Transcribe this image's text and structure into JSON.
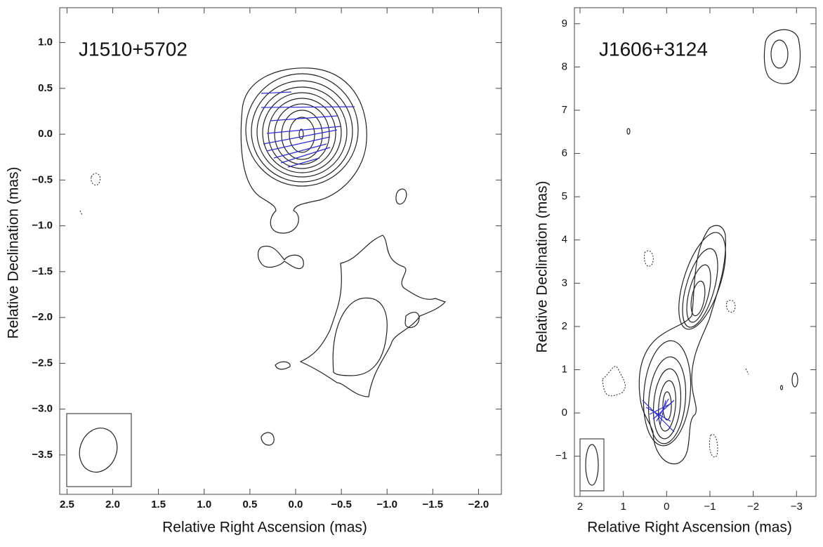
{
  "chart_data": [
    {
      "type": "contour",
      "title": "J1510+5702",
      "xlabel": "Relative Right Ascension (mas)",
      "ylabel": "Relative Declination (mas)",
      "xlim": [
        2.58,
        -2.25
      ],
      "ylim": [
        -3.93,
        1.38
      ],
      "xticks": [
        2.5,
        {
          "value": 2.0,
          "label": "2.0"
        },
        1.5,
        {
          "value": 1.0,
          "label": "1.0"
        },
        0.5,
        {
          "value": 0.0,
          "label": "0.0"
        },
        {
          "value": -0.5,
          "label": "−0.5"
        },
        {
          "value": -1.0,
          "label": "−1.0"
        },
        {
          "value": -1.5,
          "label": "−1.5"
        },
        {
          "value": -2.0,
          "label": "−2.0"
        }
      ],
      "yticks": [
        {
          "value": 1.0,
          "label": "1.0"
        },
        0.5,
        {
          "value": 0.0,
          "label": "0.0"
        },
        {
          "value": -0.5,
          "label": "−0.5"
        },
        {
          "value": -1.0,
          "label": "−1.0"
        },
        {
          "value": -1.5,
          "label": "−1.5"
        },
        {
          "value": -2.0,
          "label": "−2.0"
        },
        {
          "value": -2.5,
          "label": "−2.5"
        },
        {
          "value": -3.0,
          "label": "−3.0"
        },
        {
          "value": -3.5,
          "label": "−3.5"
        }
      ]
    },
    {
      "type": "contour",
      "title": "J1606+3124",
      "xlabel": "Relative Right Ascension (mas)",
      "ylabel": "Relative Declination (mas)",
      "xlim": [
        2.13,
        -3.45
      ],
      "ylim": [
        -1.93,
        9.37
      ],
      "xticks": [
        2,
        1,
        0,
        {
          "value": -1,
          "label": "−1"
        },
        {
          "value": -2,
          "label": "−2"
        },
        {
          "value": -3,
          "label": "−3"
        }
      ],
      "yticks": [
        9,
        8,
        7,
        6,
        5,
        4,
        3,
        2,
        1,
        0,
        {
          "value": -1,
          "label": "−1"
        }
      ]
    }
  ]
}
